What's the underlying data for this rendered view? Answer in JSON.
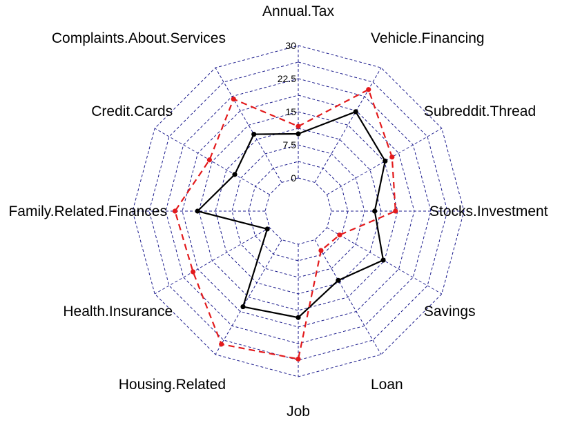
{
  "chart_data": {
    "type": "radar",
    "axes": [
      "Annual.Tax",
      "Vehicle.Financing",
      "Subreddit.Thread",
      "Stocks.Investment",
      "Savings",
      "Loan",
      "Job",
      "Housing.Related",
      "Health.Insurance",
      "Family.Related.Finances",
      "Credit.Cards",
      "Complaints.About.Services"
    ],
    "ticks": [
      0,
      7.5,
      15,
      22.5,
      30
    ],
    "tick_labels": [
      "0",
      "7.5",
      "15",
      "22.5",
      "30"
    ],
    "rlim": [
      0,
      30
    ],
    "grid": true,
    "series": [
      {
        "values": [
          10.0,
          18.5,
          15.2,
          9.8,
          14.7,
          10.6,
          16.6,
          17.5,
          0.6,
          15.3,
          9.1,
          12.6
        ],
        "color": "#000000",
        "dashed": false
      },
      {
        "values": [
          11.7,
          24.3,
          17.0,
          14.5,
          3.3,
          2.8,
          26.0,
          27.3,
          20.0,
          20.4,
          15.7,
          21.8
        ],
        "color": "#e31a1c",
        "dashed": true
      }
    ]
  }
}
